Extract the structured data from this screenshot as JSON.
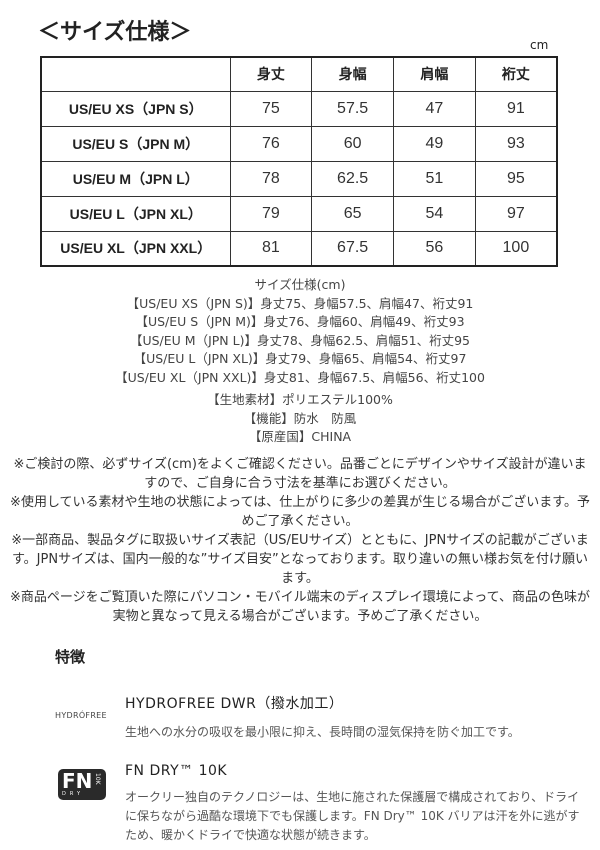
{
  "title": "＜サイズ仕様＞",
  "unit": "cm",
  "table": {
    "headers": [
      "",
      "身丈",
      "身幅",
      "肩幅",
      "裄丈"
    ],
    "rows": [
      [
        "US/EU XS（JPN S）",
        "75",
        "57.5",
        "47",
        "91"
      ],
      [
        "US/EU S（JPN M）",
        "76",
        "60",
        "49",
        "93"
      ],
      [
        "US/EU M（JPN L）",
        "78",
        "62.5",
        "51",
        "95"
      ],
      [
        "US/EU L（JPN XL）",
        "79",
        "65",
        "54",
        "97"
      ],
      [
        "US/EU XL（JPN XXL）",
        "81",
        "67.5",
        "56",
        "100"
      ]
    ]
  },
  "spec_lines": [
    "サイズ仕様(cm)",
    "【US/EU XS（JPN S)】身丈75、身幅57.5、肩幅47、裄丈91",
    "【US/EU S（JPN M)】身丈76、身幅60、肩幅49、裄丈93",
    "【US/EU M（JPN L)】身丈78、身幅62.5、肩幅51、裄丈95",
    "【US/EU L（JPN XL)】身丈79、身幅65、肩幅54、裄丈97",
    "【US/EU XL（JPN XXL)】身丈81、身幅67.5、肩幅56、裄丈100"
  ],
  "material_lines": [
    "【生地素材】ポリエステル100%",
    "【機能】防水　防風",
    "【原産国】CHINA"
  ],
  "notes": [
    "※ご検討の際、必ずサイズ(cm)をよくご確認ください。品番ごとにデザインやサイズ設計が違いますので、ご自身に合う寸法を基準にお選びください。",
    "※使用している素材や生地の状態によっては、仕上がりに多少の差異が生じる場合がございます。予めご了承ください。",
    "※一部商品、製品タグに取扱いサイズ表記（US/EUサイズ）とともに、JPNサイズの記載がございます。JPNサイズは、国内一般的な”サイズ目安”となっております。取り違いの無い様お気を付け願います。",
    "※商品ページをご覧頂いた際にパソコン・モバイル端末のディスプレイ環境によって、商品の色味が実物と異なって見える場合がございます。予めご了承ください。"
  ],
  "features": {
    "heading": "特徴",
    "items": [
      {
        "logo": "HYDROFREE",
        "title": "HYDROFREE DWR（撥水加工）",
        "desc": "生地への水分の吸収を最小限に抑え、長時間の湿気保持を防ぐ加工です。"
      },
      {
        "logo": "FN DRY 10K",
        "title": "FN DRY™ 10K",
        "desc": "オークリー独自のテクノロジーは、生地に施された保護層で構成されており、ドライに保ちながら過酷な環境下でも保護します。FN Dry™ 10K バリアは汗を外に逃がすため、暖かくドライで快適な状態が続きます。"
      }
    ]
  }
}
